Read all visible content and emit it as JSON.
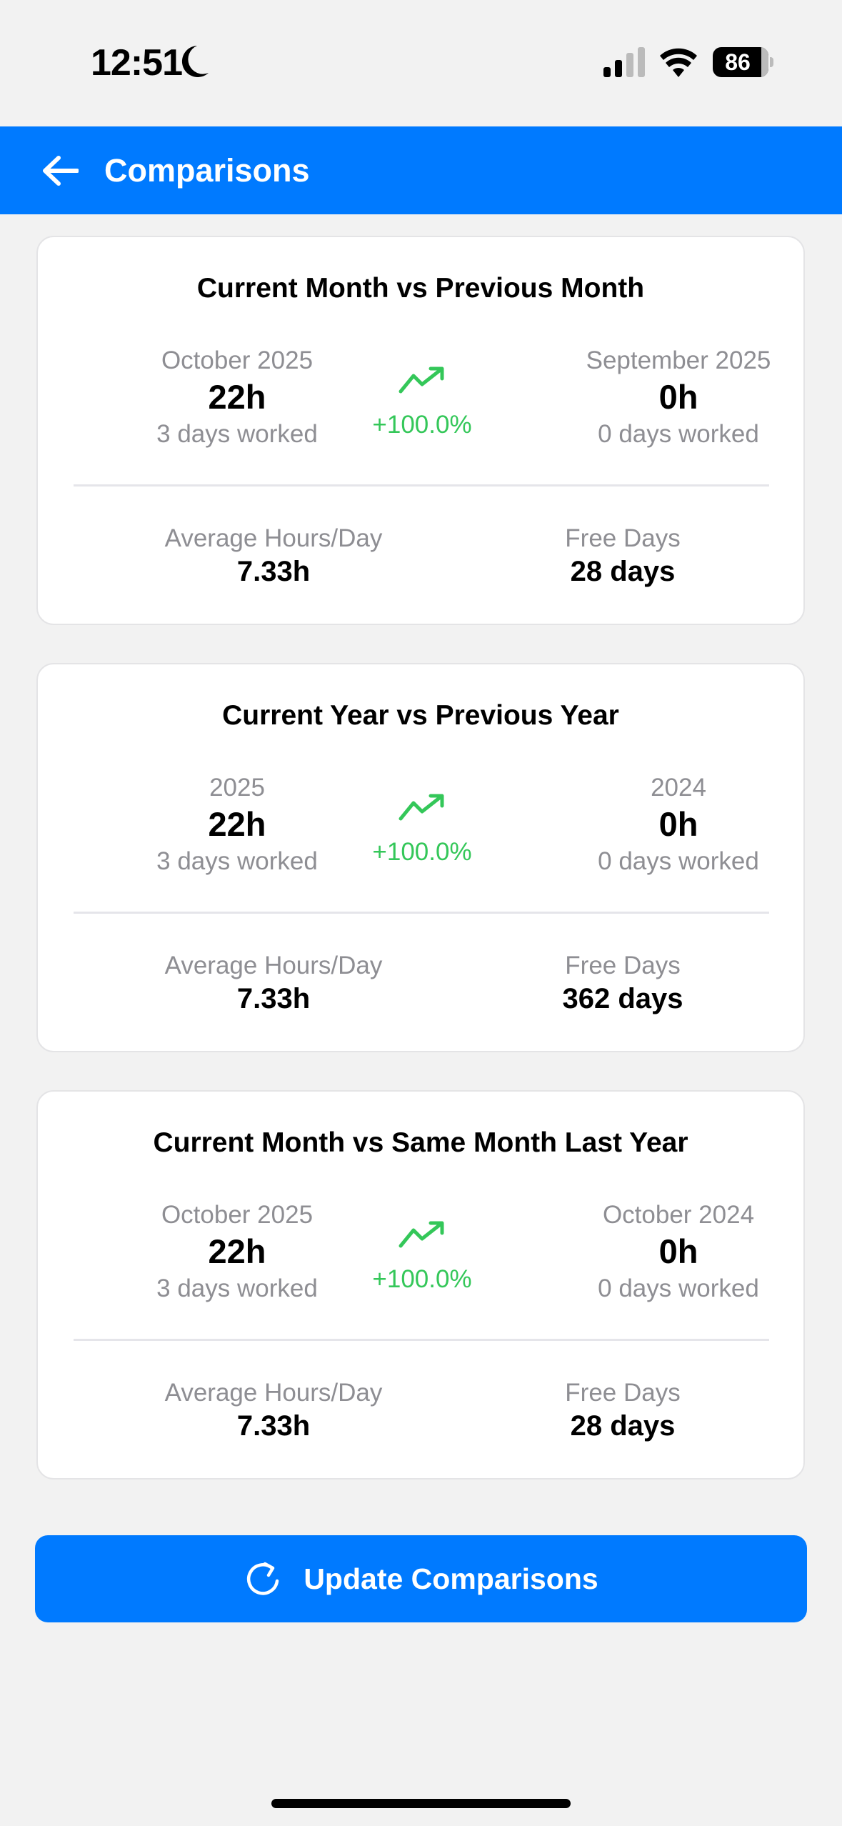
{
  "status_bar": {
    "time": "12:51",
    "battery": "86"
  },
  "header": {
    "title": "Comparisons"
  },
  "colors": {
    "accent": "#007aff",
    "positive": "#34c759",
    "muted": "#8e8e93"
  },
  "cards": [
    {
      "title": "Current Month vs Previous Month",
      "current": {
        "period": "October 2025",
        "hours": "22h",
        "days": "3 days worked"
      },
      "change": "+100.0%",
      "previous": {
        "period": "September 2025",
        "hours": "0h",
        "days": "0 days worked"
      },
      "avg_label": "Average Hours/Day",
      "avg_value": "7.33h",
      "free_label": "Free Days",
      "free_value": "28 days"
    },
    {
      "title": "Current Year vs Previous Year",
      "current": {
        "period": "2025",
        "hours": "22h",
        "days": "3 days worked"
      },
      "change": "+100.0%",
      "previous": {
        "period": "2024",
        "hours": "0h",
        "days": "0 days worked"
      },
      "avg_label": "Average Hours/Day",
      "avg_value": "7.33h",
      "free_label": "Free Days",
      "free_value": "362 days"
    },
    {
      "title": "Current Month vs Same Month Last Year",
      "current": {
        "period": "October 2025",
        "hours": "22h",
        "days": "3 days worked"
      },
      "change": "+100.0%",
      "previous": {
        "period": "October 2024",
        "hours": "0h",
        "days": "0 days worked"
      },
      "avg_label": "Average Hours/Day",
      "avg_value": "7.33h",
      "free_label": "Free Days",
      "free_value": "28 days"
    }
  ],
  "update_button": {
    "label": "Update Comparisons",
    "icon": "refresh-icon"
  }
}
